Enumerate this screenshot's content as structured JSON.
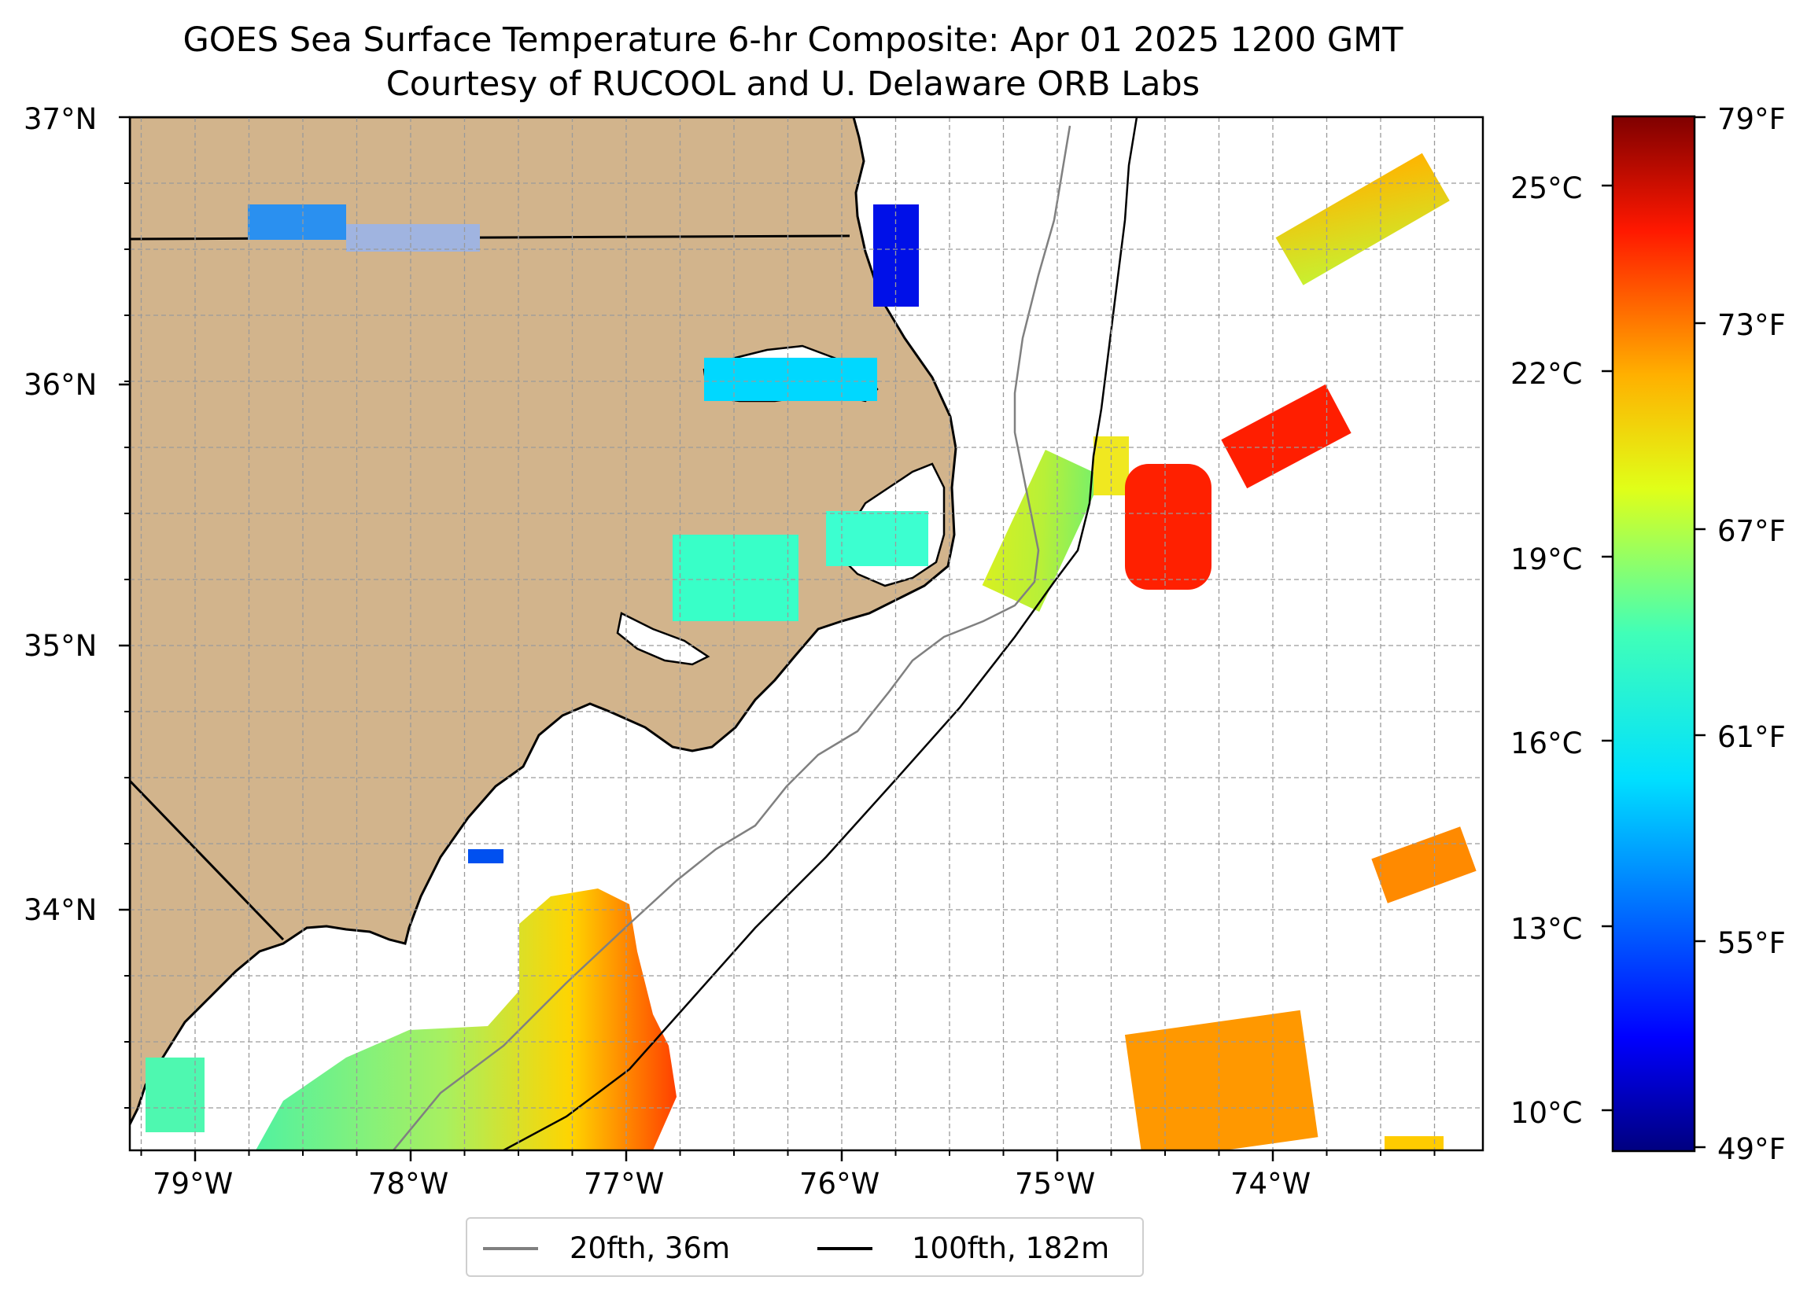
{
  "title": {
    "line1": "GOES Sea Surface Temperature 6-hr Composite: Apr 01 2025 1200 GMT",
    "line2": "Courtesy of RUCOOL and U. Delaware ORB Labs"
  },
  "map": {
    "lat_labels": [
      "37°N",
      "36°N",
      "35°N",
      "34°N"
    ],
    "lon_labels": [
      "79°W",
      "78°W",
      "77°W",
      "76°W",
      "75°W",
      "74°W"
    ],
    "land_color": "#d2b48c",
    "grid": true
  },
  "colorbar": {
    "colormap": "jet",
    "celsius_labels": [
      "25°C",
      "22°C",
      "19°C",
      "16°C",
      "13°C",
      "10°C"
    ],
    "fahrenheit_labels": [
      "79°F",
      "73°F",
      "67°F",
      "61°F",
      "55°F",
      "49°F"
    ],
    "range_f": [
      49,
      79
    ]
  },
  "legend": {
    "items": [
      {
        "label": "20fth, 36m",
        "color": "#808080"
      },
      {
        "label": "100fth, 182m",
        "color": "#000000"
      }
    ]
  }
}
